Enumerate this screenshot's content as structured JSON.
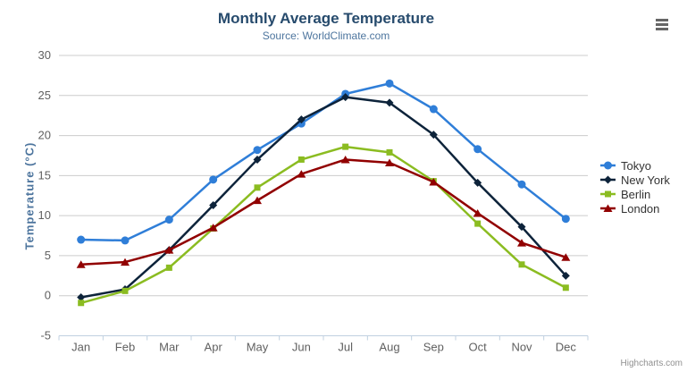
{
  "header": {
    "title": "Monthly Average Temperature",
    "subtitle": "Source: WorldClimate.com",
    "menu_icon": "hamburger-menu-icon"
  },
  "credits": {
    "label": "Highcharts.com"
  },
  "chart_data": {
    "type": "line",
    "title": "Monthly Average Temperature",
    "subtitle": "Source: WorldClimate.com",
    "xlabel": "",
    "ylabel": "Temperature (°C)",
    "categories": [
      "Jan",
      "Feb",
      "Mar",
      "Apr",
      "May",
      "Jun",
      "Jul",
      "Aug",
      "Sep",
      "Oct",
      "Nov",
      "Dec"
    ],
    "ylim": [
      -5,
      30
    ],
    "y_ticks": [
      -5,
      0,
      5,
      10,
      15,
      20,
      25,
      30
    ],
    "grid": true,
    "legend_position": "right",
    "series": [
      {
        "name": "Tokyo",
        "color": "#2f7ed8",
        "marker": "circle",
        "values": [
          7.0,
          6.9,
          9.5,
          14.5,
          18.2,
          21.5,
          25.2,
          26.5,
          23.3,
          18.3,
          13.9,
          9.6
        ]
      },
      {
        "name": "New York",
        "color": "#0d233a",
        "marker": "diamond",
        "values": [
          -0.2,
          0.8,
          5.7,
          11.3,
          17.0,
          22.0,
          24.8,
          24.1,
          20.1,
          14.1,
          8.6,
          2.5
        ]
      },
      {
        "name": "Berlin",
        "color": "#8bbc21",
        "marker": "square",
        "values": [
          -0.9,
          0.6,
          3.5,
          8.4,
          13.5,
          17.0,
          18.6,
          17.9,
          14.3,
          9.0,
          3.9,
          1.0
        ]
      },
      {
        "name": "London",
        "color": "#910000",
        "marker": "triangle",
        "values": [
          3.9,
          4.2,
          5.7,
          8.5,
          11.9,
          15.2,
          17.0,
          16.6,
          14.2,
          10.3,
          6.6,
          4.8
        ]
      }
    ],
    "colors": {
      "title_text": "#274b6d",
      "subtitle_text": "#4d759e",
      "axis_title_text": "#4d759e",
      "tick_label_text": "#606060",
      "legend_text": "#333333",
      "gridline": "#cccccc",
      "axis_line": "#c0d0e0",
      "credits_text": "#909090",
      "menu_icon": "#666666"
    }
  }
}
